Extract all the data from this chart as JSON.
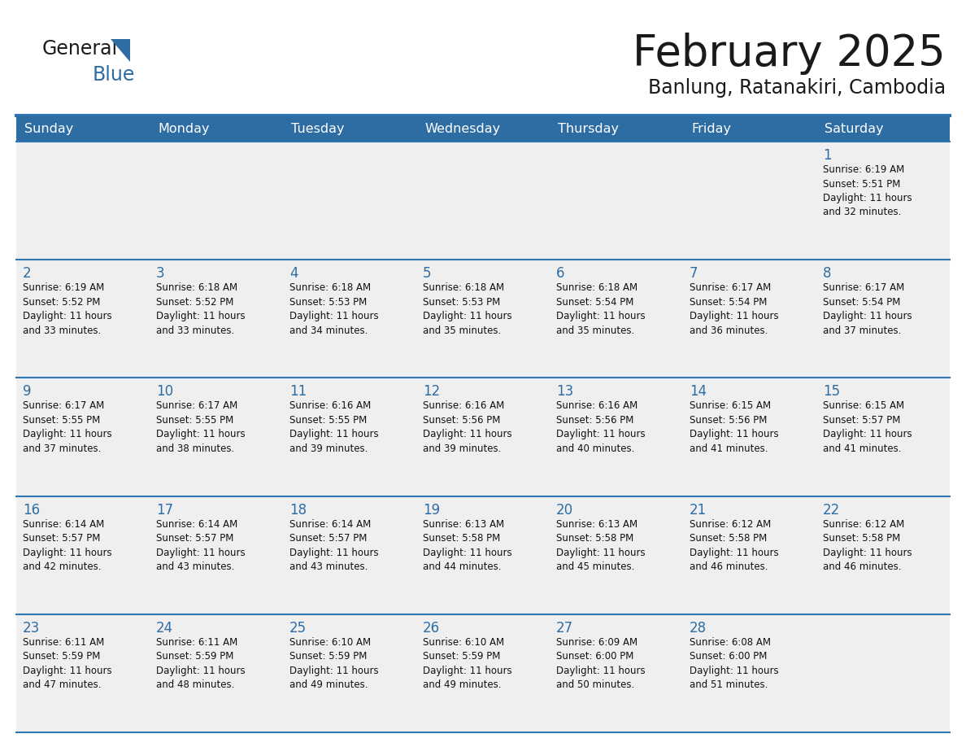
{
  "title": "February 2025",
  "subtitle": "Banlung, Ratanakiri, Cambodia",
  "header_bg_color": "#2E6DA4",
  "header_text_color": "#FFFFFF",
  "cell_bg_color": "#EFEFEF",
  "cell_text_color": "#111111",
  "day_num_color": "#2E6DA4",
  "border_color": "#2E75B6",
  "separator_color": "#2E75B6",
  "day_headers": [
    "Sunday",
    "Monday",
    "Tuesday",
    "Wednesday",
    "Thursday",
    "Friday",
    "Saturday"
  ],
  "title_color": "#1a1a1a",
  "subtitle_color": "#1a1a1a",
  "logo_color_general": "#1a1a1a",
  "logo_color_blue": "#2E6DA4",
  "logo_triangle_color": "#2E6DA4",
  "weeks": [
    [
      {
        "day": null,
        "info": null
      },
      {
        "day": null,
        "info": null
      },
      {
        "day": null,
        "info": null
      },
      {
        "day": null,
        "info": null
      },
      {
        "day": null,
        "info": null
      },
      {
        "day": null,
        "info": null
      },
      {
        "day": 1,
        "info": "Sunrise: 6:19 AM\nSunset: 5:51 PM\nDaylight: 11 hours\nand 32 minutes."
      }
    ],
    [
      {
        "day": 2,
        "info": "Sunrise: 6:19 AM\nSunset: 5:52 PM\nDaylight: 11 hours\nand 33 minutes."
      },
      {
        "day": 3,
        "info": "Sunrise: 6:18 AM\nSunset: 5:52 PM\nDaylight: 11 hours\nand 33 minutes."
      },
      {
        "day": 4,
        "info": "Sunrise: 6:18 AM\nSunset: 5:53 PM\nDaylight: 11 hours\nand 34 minutes."
      },
      {
        "day": 5,
        "info": "Sunrise: 6:18 AM\nSunset: 5:53 PM\nDaylight: 11 hours\nand 35 minutes."
      },
      {
        "day": 6,
        "info": "Sunrise: 6:18 AM\nSunset: 5:54 PM\nDaylight: 11 hours\nand 35 minutes."
      },
      {
        "day": 7,
        "info": "Sunrise: 6:17 AM\nSunset: 5:54 PM\nDaylight: 11 hours\nand 36 minutes."
      },
      {
        "day": 8,
        "info": "Sunrise: 6:17 AM\nSunset: 5:54 PM\nDaylight: 11 hours\nand 37 minutes."
      }
    ],
    [
      {
        "day": 9,
        "info": "Sunrise: 6:17 AM\nSunset: 5:55 PM\nDaylight: 11 hours\nand 37 minutes."
      },
      {
        "day": 10,
        "info": "Sunrise: 6:17 AM\nSunset: 5:55 PM\nDaylight: 11 hours\nand 38 minutes."
      },
      {
        "day": 11,
        "info": "Sunrise: 6:16 AM\nSunset: 5:55 PM\nDaylight: 11 hours\nand 39 minutes."
      },
      {
        "day": 12,
        "info": "Sunrise: 6:16 AM\nSunset: 5:56 PM\nDaylight: 11 hours\nand 39 minutes."
      },
      {
        "day": 13,
        "info": "Sunrise: 6:16 AM\nSunset: 5:56 PM\nDaylight: 11 hours\nand 40 minutes."
      },
      {
        "day": 14,
        "info": "Sunrise: 6:15 AM\nSunset: 5:56 PM\nDaylight: 11 hours\nand 41 minutes."
      },
      {
        "day": 15,
        "info": "Sunrise: 6:15 AM\nSunset: 5:57 PM\nDaylight: 11 hours\nand 41 minutes."
      }
    ],
    [
      {
        "day": 16,
        "info": "Sunrise: 6:14 AM\nSunset: 5:57 PM\nDaylight: 11 hours\nand 42 minutes."
      },
      {
        "day": 17,
        "info": "Sunrise: 6:14 AM\nSunset: 5:57 PM\nDaylight: 11 hours\nand 43 minutes."
      },
      {
        "day": 18,
        "info": "Sunrise: 6:14 AM\nSunset: 5:57 PM\nDaylight: 11 hours\nand 43 minutes."
      },
      {
        "day": 19,
        "info": "Sunrise: 6:13 AM\nSunset: 5:58 PM\nDaylight: 11 hours\nand 44 minutes."
      },
      {
        "day": 20,
        "info": "Sunrise: 6:13 AM\nSunset: 5:58 PM\nDaylight: 11 hours\nand 45 minutes."
      },
      {
        "day": 21,
        "info": "Sunrise: 6:12 AM\nSunset: 5:58 PM\nDaylight: 11 hours\nand 46 minutes."
      },
      {
        "day": 22,
        "info": "Sunrise: 6:12 AM\nSunset: 5:58 PM\nDaylight: 11 hours\nand 46 minutes."
      }
    ],
    [
      {
        "day": 23,
        "info": "Sunrise: 6:11 AM\nSunset: 5:59 PM\nDaylight: 11 hours\nand 47 minutes."
      },
      {
        "day": 24,
        "info": "Sunrise: 6:11 AM\nSunset: 5:59 PM\nDaylight: 11 hours\nand 48 minutes."
      },
      {
        "day": 25,
        "info": "Sunrise: 6:10 AM\nSunset: 5:59 PM\nDaylight: 11 hours\nand 49 minutes."
      },
      {
        "day": 26,
        "info": "Sunrise: 6:10 AM\nSunset: 5:59 PM\nDaylight: 11 hours\nand 49 minutes."
      },
      {
        "day": 27,
        "info": "Sunrise: 6:09 AM\nSunset: 6:00 PM\nDaylight: 11 hours\nand 50 minutes."
      },
      {
        "day": 28,
        "info": "Sunrise: 6:08 AM\nSunset: 6:00 PM\nDaylight: 11 hours\nand 51 minutes."
      },
      {
        "day": null,
        "info": null
      }
    ]
  ]
}
